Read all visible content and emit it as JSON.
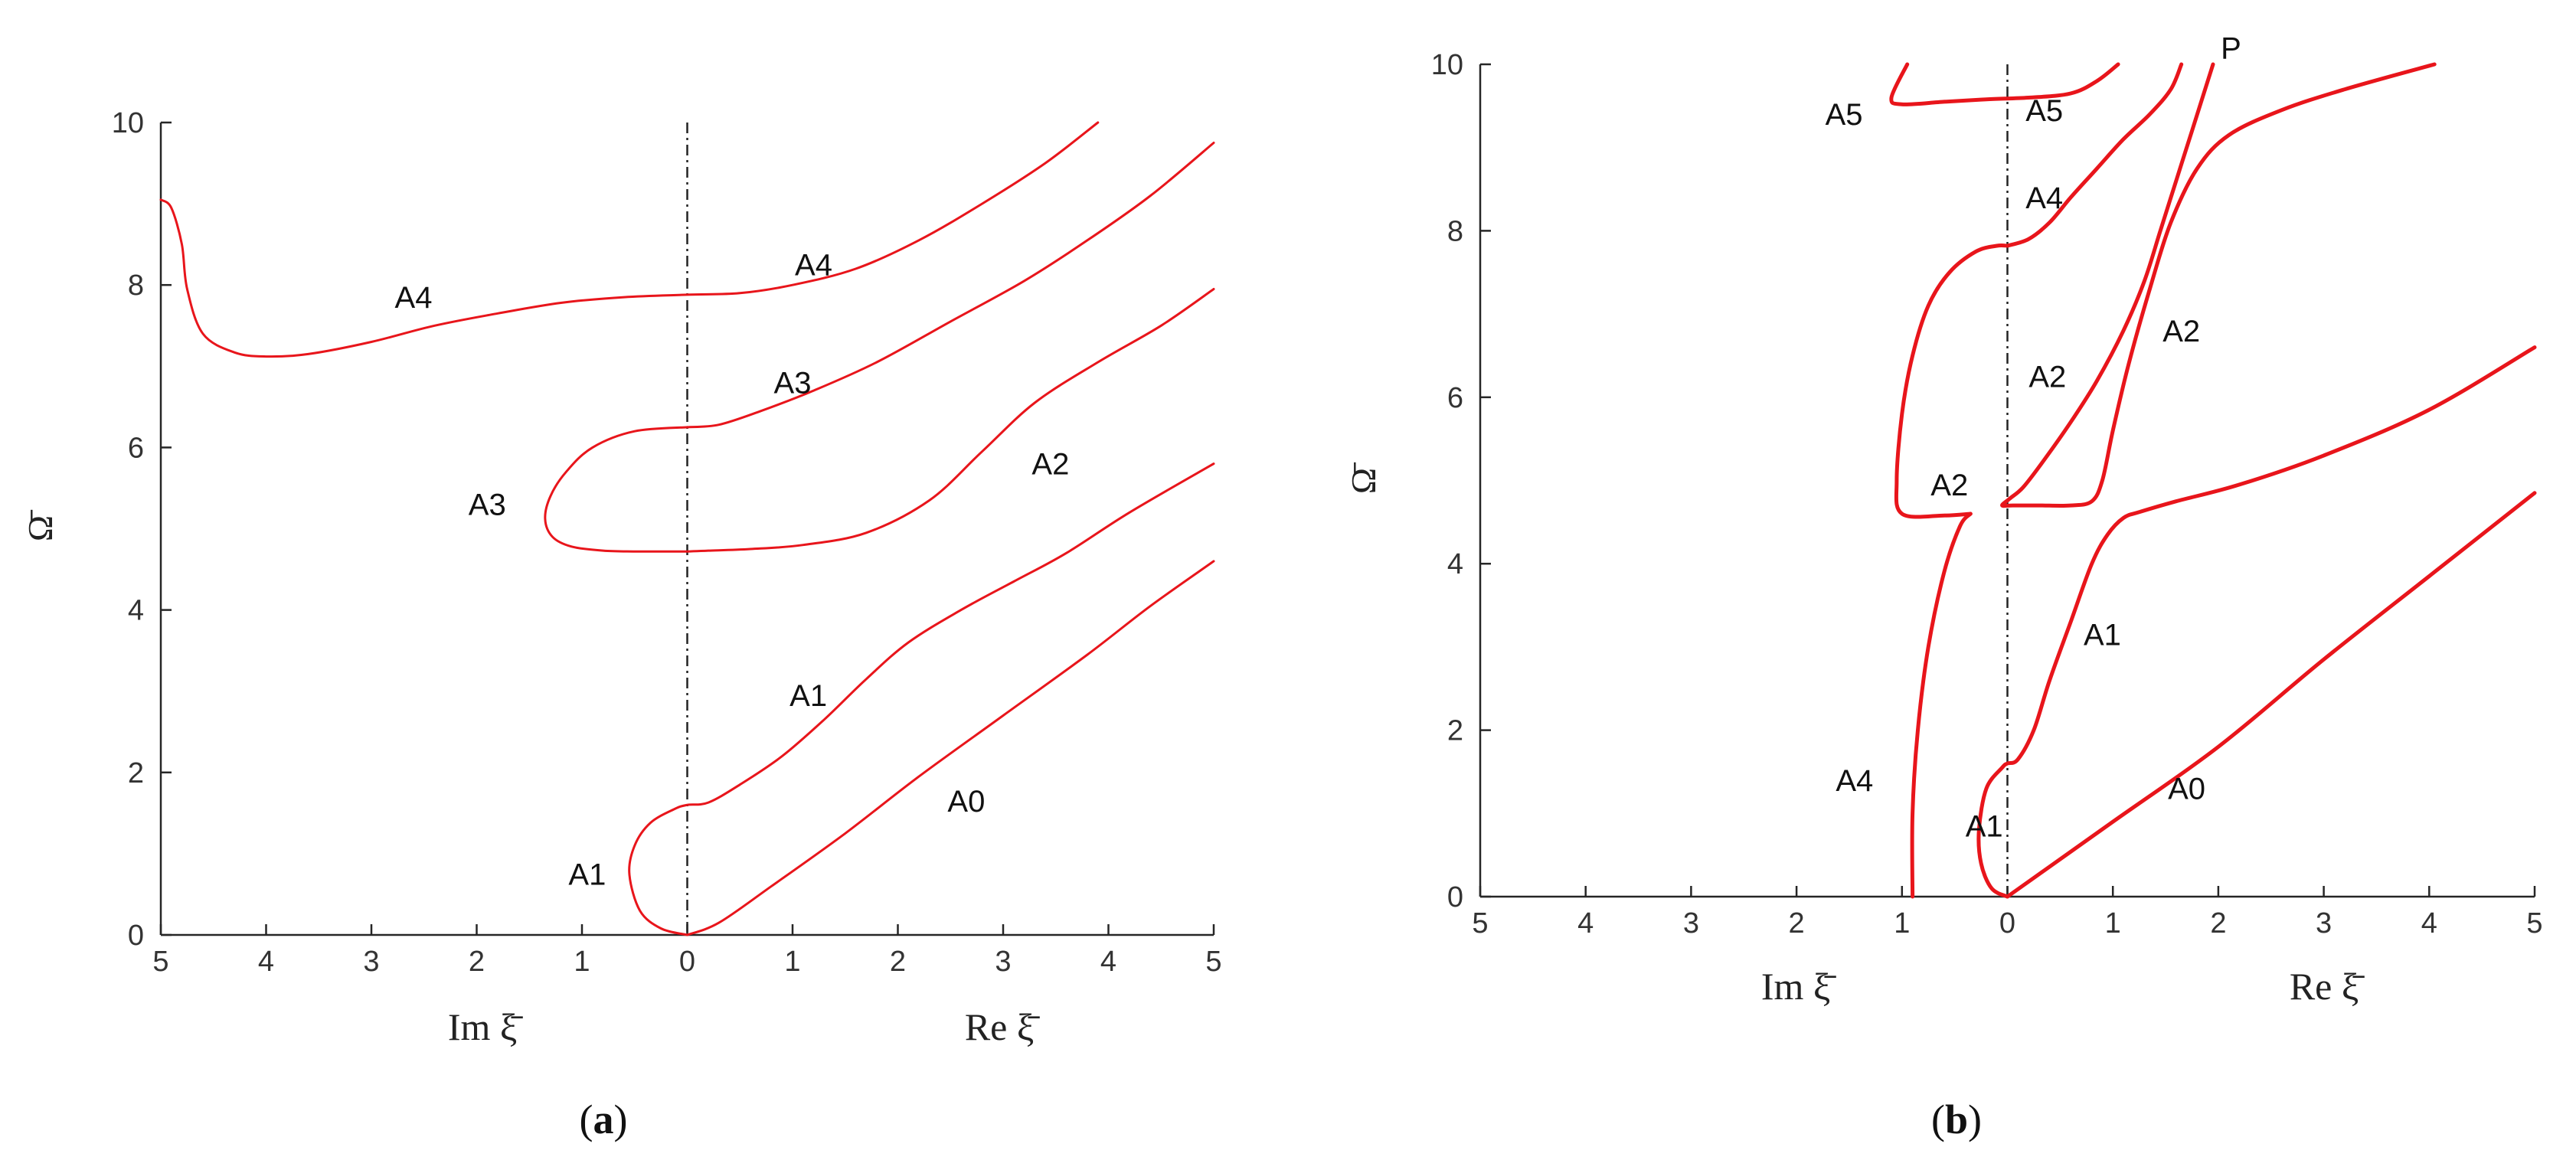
{
  "chart_data": [
    {
      "type": "line",
      "panel": "a",
      "caption": {
        "open": "(",
        "letter": "a",
        "close": ")"
      },
      "xlabel_left": "Im ξ̄",
      "xlabel_right": "Re ξ̄",
      "ylabel": "Ω̄",
      "xlim": [
        -5,
        5
      ],
      "ylim": [
        0,
        10
      ],
      "x_ticks": [
        {
          "value": -5,
          "label": "5"
        },
        {
          "value": -4,
          "label": "4"
        },
        {
          "value": -3,
          "label": "3"
        },
        {
          "value": -2,
          "label": "2"
        },
        {
          "value": -1,
          "label": "1"
        },
        {
          "value": 0,
          "label": "0"
        },
        {
          "value": 1,
          "label": "1"
        },
        {
          "value": 2,
          "label": "2"
        },
        {
          "value": 3,
          "label": "3"
        },
        {
          "value": 4,
          "label": "4"
        },
        {
          "value": 5,
          "label": "5"
        }
      ],
      "y_ticks": [
        {
          "value": 0,
          "label": "0"
        },
        {
          "value": 2,
          "label": "2"
        },
        {
          "value": 4,
          "label": "4"
        },
        {
          "value": 6,
          "label": "6"
        },
        {
          "value": 8,
          "label": "8"
        },
        {
          "value": 10,
          "label": "10"
        }
      ],
      "grid": false,
      "line_color": "#e8151b",
      "curve_width": 3,
      "series": [
        {
          "x": [
            0,
            0.3,
            0.8,
            1.5,
            2.2,
            3.0,
            3.8,
            4.4,
            5.0
          ],
          "y": [
            0,
            0.15,
            0.6,
            1.25,
            1.95,
            2.7,
            3.45,
            4.05,
            4.6
          ]
        },
        {
          "x": [
            0,
            -0.25,
            -0.45,
            -0.55,
            -0.5,
            -0.35,
            -0.12,
            0,
            0.2,
            0.5,
            0.9,
            1.3,
            1.7,
            2.1,
            2.6,
            3.1,
            3.6,
            4.2,
            5.0
          ],
          "y": [
            0,
            0.08,
            0.3,
            0.75,
            1.1,
            1.38,
            1.55,
            1.6,
            1.63,
            1.85,
            2.2,
            2.65,
            3.15,
            3.6,
            4.0,
            4.35,
            4.7,
            5.2,
            5.8
          ]
        },
        {
          "x": [
            0,
            -0.5,
            -0.9,
            -1.15,
            -1.3,
            -1.35,
            -1.28,
            -1.1,
            -0.8,
            -0.5,
            -0.2,
            0,
            0.2,
            0.6,
            1.1,
            1.7,
            2.3,
            2.8,
            3.3,
            3.9,
            4.5,
            5.0
          ],
          "y": [
            6.25,
            6.2,
            6.0,
            5.7,
            5.4,
            5.12,
            4.9,
            4.78,
            4.73,
            4.72,
            4.72,
            4.72,
            4.73,
            4.75,
            4.8,
            4.95,
            5.35,
            5.95,
            6.55,
            7.05,
            7.5,
            7.95
          ]
        },
        {
          "x": [
            0,
            0.3,
            0.7,
            1.2,
            1.8,
            2.5,
            3.2,
            3.8,
            4.4,
            5.0
          ],
          "y": [
            6.25,
            6.28,
            6.45,
            6.7,
            7.05,
            7.55,
            8.05,
            8.55,
            9.1,
            9.75
          ]
        },
        {
          "x": [
            -5.0,
            -4.9,
            -4.8,
            -4.75,
            -4.6,
            -4.3,
            -4.0,
            -3.6,
            -3.0,
            -2.4,
            -1.8,
            -1.2,
            -0.6,
            0,
            0.5,
            1.0,
            1.6,
            2.2,
            2.8,
            3.4,
            3.9
          ],
          "y": [
            9.05,
            8.95,
            8.5,
            7.95,
            7.4,
            7.17,
            7.12,
            7.15,
            7.3,
            7.5,
            7.65,
            7.78,
            7.85,
            7.88,
            7.9,
            8.0,
            8.2,
            8.55,
            9.0,
            9.5,
            10.0
          ]
        }
      ],
      "annotations": [
        {
          "text": "A0",
          "x": 2.65,
          "y": 1.65
        },
        {
          "text": "A1",
          "x": 1.15,
          "y": 2.95
        },
        {
          "text": "A1",
          "x": -0.95,
          "y": 0.75
        },
        {
          "text": "A2",
          "x": 3.45,
          "y": 5.8
        },
        {
          "text": "A3",
          "x": 1.0,
          "y": 6.8
        },
        {
          "text": "A3",
          "x": -1.9,
          "y": 5.3
        },
        {
          "text": "A4",
          "x": 1.2,
          "y": 8.25
        },
        {
          "text": "A4",
          "x": -2.6,
          "y": 7.85
        }
      ]
    },
    {
      "type": "line",
      "panel": "b",
      "caption": {
        "open": "(",
        "letter": "b",
        "close": ")"
      },
      "xlabel_left": "Im ξ̄",
      "xlabel_right": "Re ξ̄",
      "ylabel": "Ω̄",
      "xlim": [
        -5,
        5
      ],
      "ylim": [
        0,
        10
      ],
      "x_ticks": [
        {
          "value": -5,
          "label": "5"
        },
        {
          "value": -4,
          "label": "4"
        },
        {
          "value": -3,
          "label": "3"
        },
        {
          "value": -2,
          "label": "2"
        },
        {
          "value": -1,
          "label": "1"
        },
        {
          "value": 0,
          "label": "0"
        },
        {
          "value": 1,
          "label": "1"
        },
        {
          "value": 2,
          "label": "2"
        },
        {
          "value": 3,
          "label": "3"
        },
        {
          "value": 4,
          "label": "4"
        },
        {
          "value": 5,
          "label": "5"
        }
      ],
      "y_ticks": [
        {
          "value": 0,
          "label": "0"
        },
        {
          "value": 2,
          "label": "2"
        },
        {
          "value": 4,
          "label": "4"
        },
        {
          "value": 6,
          "label": "6"
        },
        {
          "value": 8,
          "label": "8"
        },
        {
          "value": 10,
          "label": "10"
        }
      ],
      "grid": false,
      "line_color": "#e8151b",
      "curve_width": 5,
      "series": [
        {
          "x": [
            0,
            1,
            2,
            3,
            4,
            5
          ],
          "y": [
            0,
            0.9,
            1.8,
            2.85,
            3.85,
            4.85
          ]
        },
        {
          "x": [
            0,
            -0.15,
            -0.25,
            -0.27,
            -0.2,
            -0.05,
            0,
            0.1,
            0.25,
            0.4,
            0.6,
            0.8,
            0.95,
            1.1,
            1.25,
            1.6,
            2.2,
            3.0,
            4.0,
            5.0
          ],
          "y": [
            0,
            0.1,
            0.4,
            0.8,
            1.3,
            1.55,
            1.6,
            1.65,
            2.0,
            2.6,
            3.3,
            4.0,
            4.35,
            4.55,
            4.62,
            4.75,
            4.95,
            5.3,
            5.85,
            6.6
          ]
        },
        {
          "x": [
            -0.9,
            -0.9,
            -0.85,
            -0.75,
            -0.6,
            -0.45,
            -0.35
          ],
          "y": [
            0,
            1.0,
            2.0,
            3.0,
            3.9,
            4.45,
            4.6
          ]
        },
        {
          "x": [
            -0.35,
            -0.6,
            -1.0,
            -1.05,
            -1.0,
            -0.9,
            -0.75,
            -0.55,
            -0.3,
            -0.1,
            0
          ],
          "y": [
            4.6,
            4.58,
            4.6,
            5.0,
            5.8,
            6.5,
            7.1,
            7.5,
            7.75,
            7.82,
            7.82
          ]
        },
        {
          "x": [
            0,
            0.2,
            0.4,
            0.6,
            0.85,
            1.1,
            1.35,
            1.55,
            1.65
          ],
          "y": [
            7.82,
            7.9,
            8.1,
            8.4,
            8.75,
            9.1,
            9.4,
            9.7,
            10.0
          ]
        },
        {
          "x": [
            -0.95,
            -1.1,
            -1.0,
            -0.6,
            -0.2,
            0.2,
            0.6,
            0.85,
            1.05
          ],
          "y": [
            10.0,
            9.6,
            9.52,
            9.55,
            9.58,
            9.6,
            9.65,
            9.8,
            10.0
          ]
        },
        {
          "x": [
            1.95,
            1.75,
            1.6,
            1.45,
            1.3,
            1.1,
            0.85,
            0.6,
            0.35,
            0.15,
            0.02,
            -0.05,
            0.05,
            0.3,
            0.6,
            0.8,
            0.9,
            1.0,
            1.15,
            1.35,
            1.55,
            1.8,
            2.1,
            2.6,
            3.2,
            4.05
          ],
          "y": [
            10.0,
            9.2,
            8.6,
            8.0,
            7.4,
            6.8,
            6.2,
            5.7,
            5.25,
            4.92,
            4.78,
            4.7,
            4.7,
            4.7,
            4.7,
            4.75,
            5.0,
            5.6,
            6.4,
            7.3,
            8.1,
            8.75,
            9.15,
            9.45,
            9.7,
            10.0
          ]
        }
      ],
      "annotations": [
        {
          "text": "A0",
          "x": 1.7,
          "y": 1.3
        },
        {
          "text": "A1",
          "x": 0.9,
          "y": 3.15
        },
        {
          "text": "A1",
          "x": -0.22,
          "y": 0.85
        },
        {
          "text": "A2",
          "x": 1.65,
          "y": 6.8
        },
        {
          "text": "A2",
          "x": 0.38,
          "y": 6.25
        },
        {
          "text": "A2",
          "x": -0.55,
          "y": 4.95
        },
        {
          "text": "A4",
          "x": 0.35,
          "y": 8.4
        },
        {
          "text": "A4",
          "x": -1.45,
          "y": 1.4
        },
        {
          "text": "A5",
          "x": 0.35,
          "y": 9.45
        },
        {
          "text": "A5",
          "x": -1.55,
          "y": 9.4
        },
        {
          "text": "P",
          "x": 2.12,
          "y": 10.2
        }
      ]
    }
  ]
}
